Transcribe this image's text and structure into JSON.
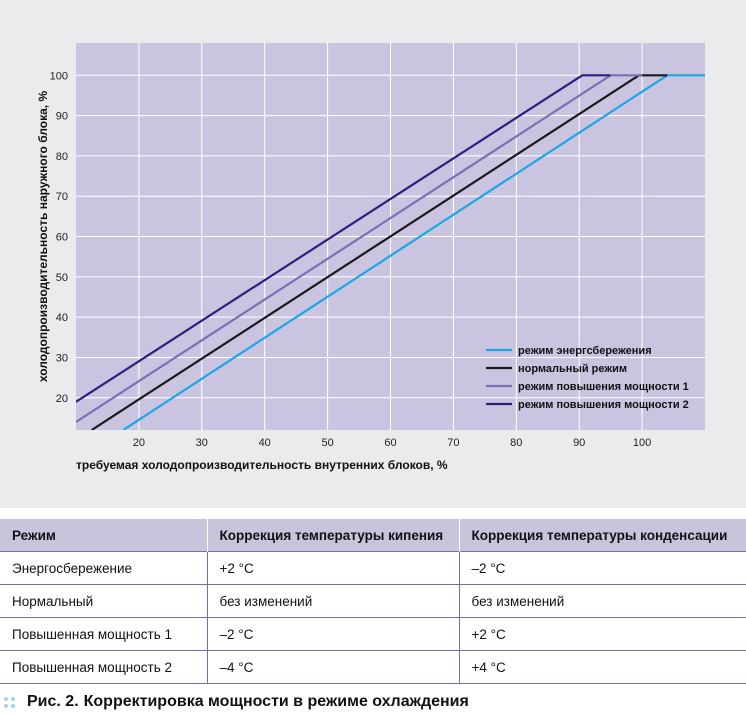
{
  "chart_data": {
    "type": "line",
    "xlabel": "требуемая холодопроизводительность внутренних блоков, %",
    "ylabel": "холодопроизводительность наружного блока, %",
    "xlim": [
      10,
      110
    ],
    "ylim": [
      12,
      108
    ],
    "x_ticks": [
      20,
      30,
      40,
      50,
      60,
      70,
      80,
      90,
      100
    ],
    "y_ticks": [
      20,
      30,
      40,
      50,
      60,
      70,
      80,
      90,
      100
    ],
    "grid": true,
    "legend_position": "bottom-right",
    "series": [
      {
        "name": "режим энергсбережения",
        "color": "#1aa7e6",
        "points": [
          [
            17.5,
            12
          ],
          [
            104,
            100
          ],
          [
            110,
            100
          ]
        ]
      },
      {
        "name": "нормальный режим",
        "color": "#1a1a1a",
        "points": [
          [
            12.5,
            12
          ],
          [
            99.5,
            100
          ],
          [
            104,
            100
          ]
        ]
      },
      {
        "name": "режим повышения мощности 1",
        "color": "#7c6fb5",
        "points": [
          [
            10,
            14
          ],
          [
            95,
            100
          ],
          [
            100,
            100
          ]
        ]
      },
      {
        "name": "режим повышения мощности 2",
        "color": "#2e1f7a",
        "points": [
          [
            10,
            19
          ],
          [
            90.5,
            100
          ],
          [
            95,
            100
          ]
        ]
      }
    ]
  },
  "table": {
    "headers": [
      "Режим",
      "Коррекция температуры кипения",
      "Коррекция температуры конденсации"
    ],
    "rows": [
      [
        "Энергосбережение",
        "+2 °C",
        "–2 °C"
      ],
      [
        "Нормальный",
        "без изменений",
        "без изменений"
      ],
      [
        "Повышенная мощность 1",
        "–2 °C",
        "+2 °C"
      ],
      [
        "Повышенная мощность 2",
        "–4 °C",
        "+4 °C"
      ]
    ]
  },
  "caption": {
    "label": "Рис. 2.",
    "text": "Корректировка мощности в режиме охлаждения"
  },
  "colors": {
    "plot_background": "#cbc4e0",
    "panel_background": "#ebebed",
    "table_header": "#c9c3dc",
    "table_rule": "#7b6bab",
    "caption_dots": "#9fd8e8"
  }
}
